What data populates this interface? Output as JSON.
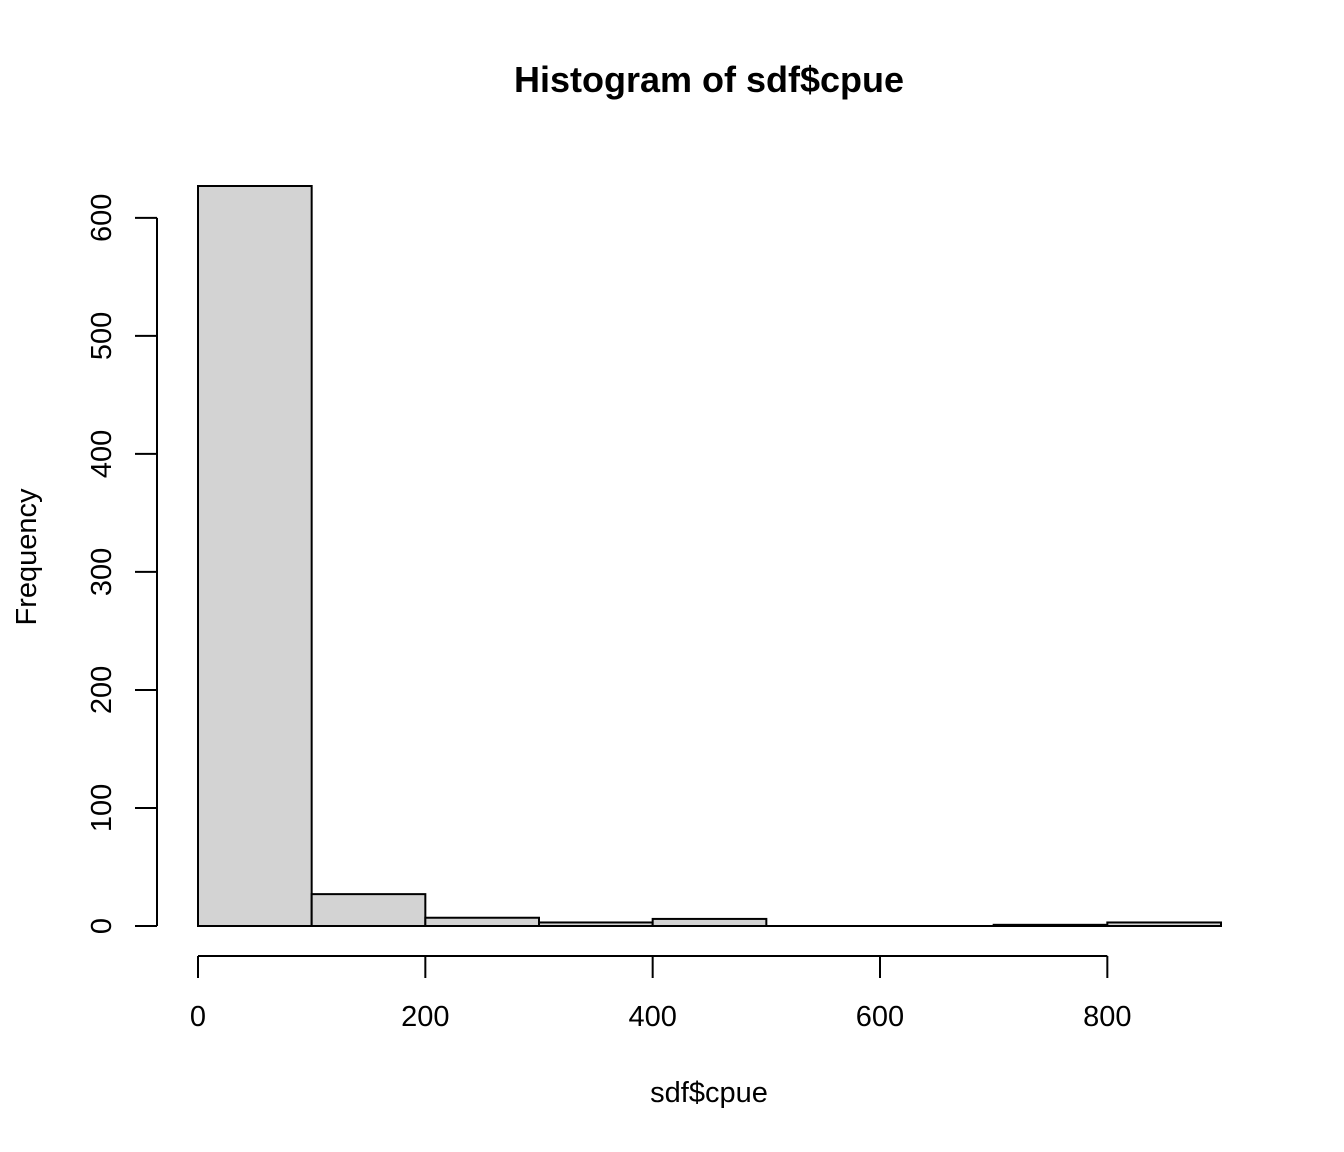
{
  "chart_data": {
    "type": "bar",
    "title": "Histogram of sdf$cpue",
    "xlabel": "sdf$cpue",
    "ylabel": "Frequency",
    "bin_edges": [
      0,
      100,
      200,
      300,
      400,
      500,
      600,
      700,
      800,
      900
    ],
    "values": [
      627,
      27,
      7,
      3,
      6,
      0,
      0,
      1,
      3
    ],
    "xlim": [
      0,
      900
    ],
    "ylim": [
      0,
      627
    ],
    "x_ticks": [
      0,
      200,
      400,
      600,
      800
    ],
    "y_ticks": [
      0,
      100,
      200,
      300,
      400,
      500,
      600
    ],
    "bar_fill": "#d3d3d3",
    "bar_stroke": "#000000",
    "grid": false
  }
}
